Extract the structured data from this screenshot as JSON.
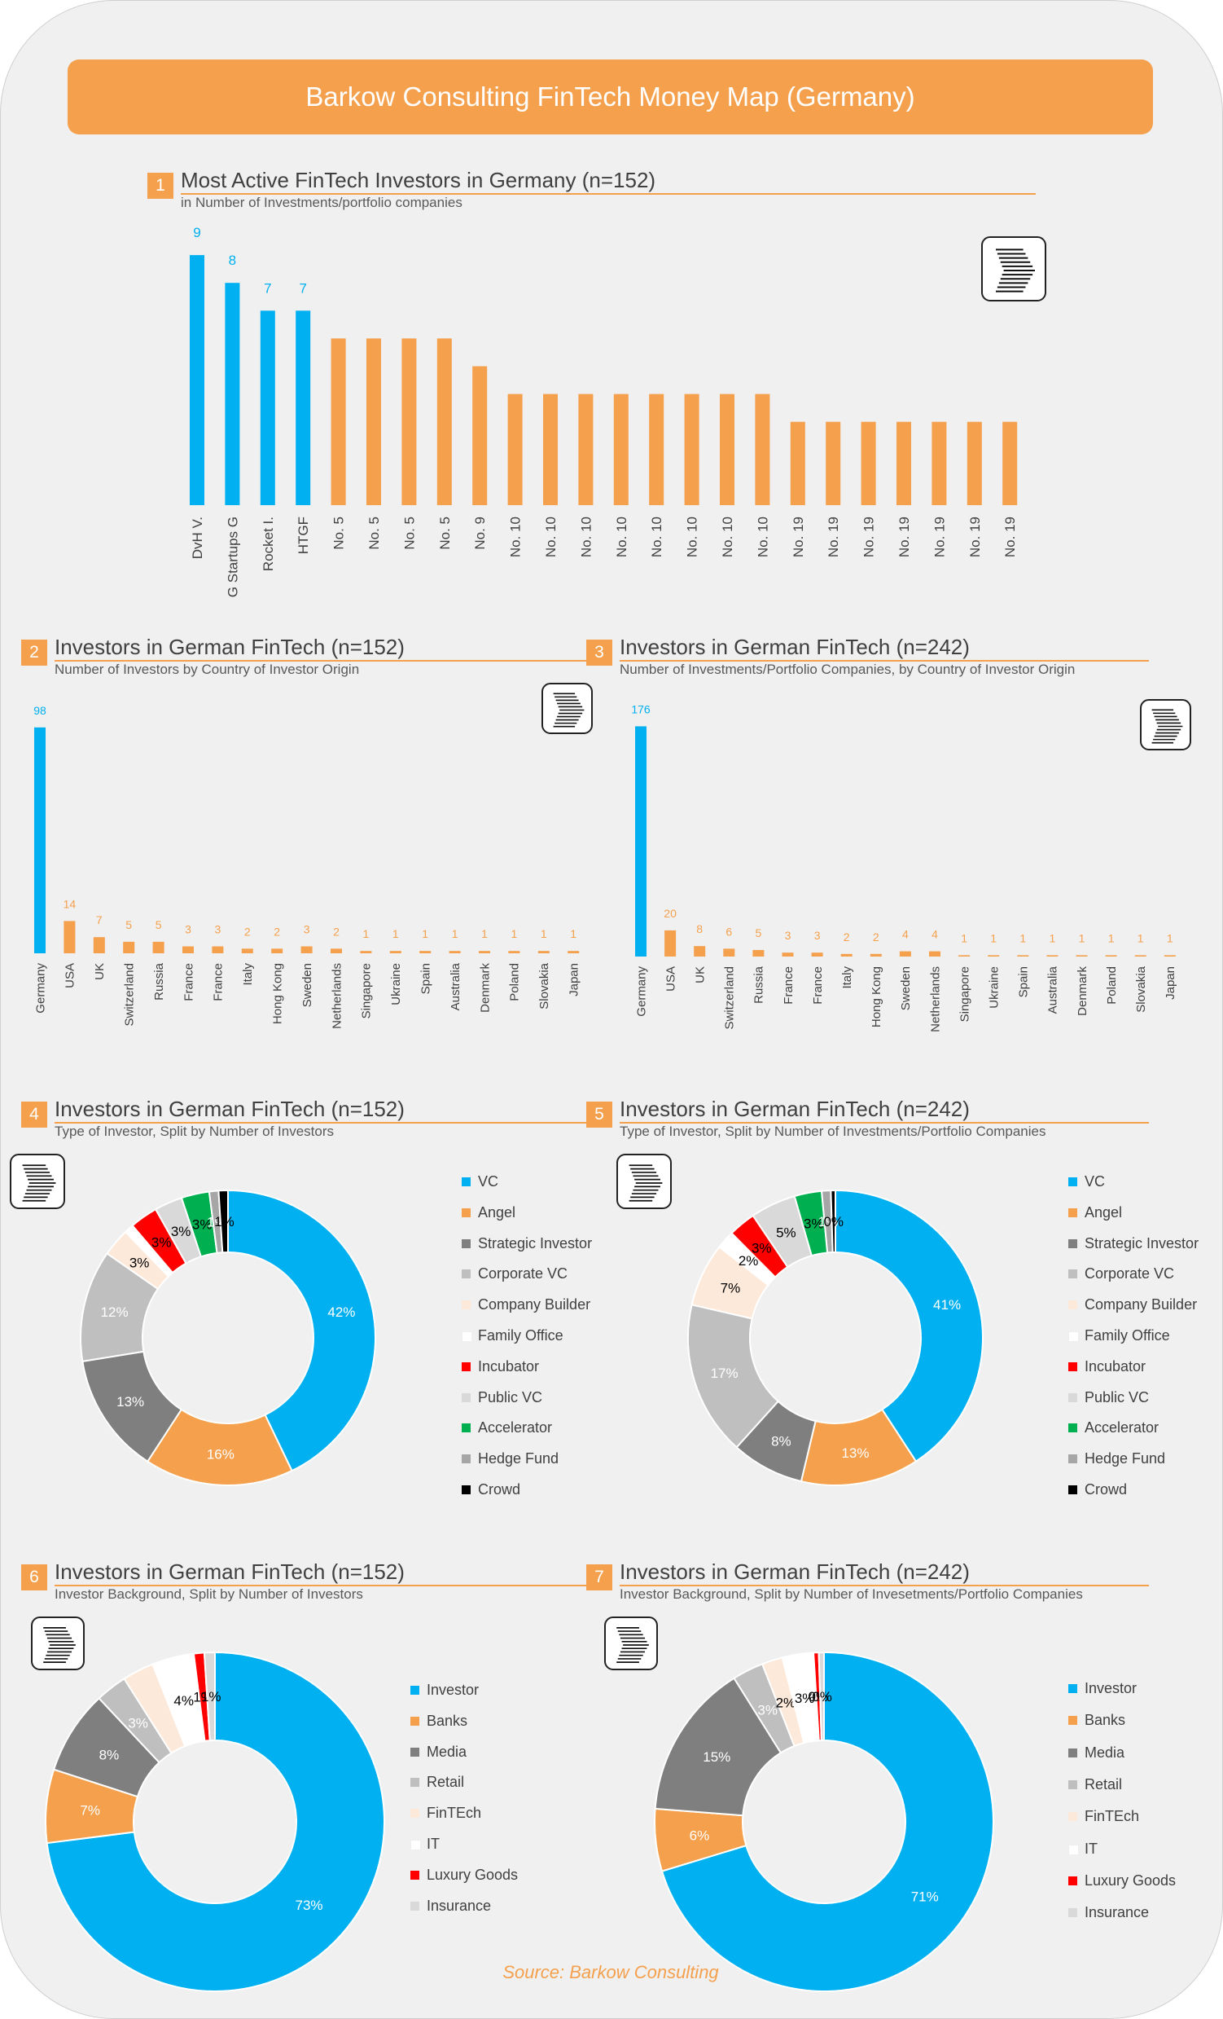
{
  "title": "Barkow Consulting FinTech Money Map (Germany)",
  "source": "Source: Barkow Consulting",
  "colors": {
    "blue": "#00b0f0",
    "orange": "#f4a04d",
    "line": "#f4a04d",
    "label_blue": "#00b0f0",
    "label_orange": "#f4a04d"
  },
  "sections": [
    {
      "num": "1",
      "title": "Most Active FinTech Investors in Germany (n=152)",
      "subtitle": "in Number of Investments/portfolio companies"
    },
    {
      "num": "2",
      "title": "Investors in German FinTech (n=152)",
      "subtitle": "Number of Investors by Country of Investor Origin"
    },
    {
      "num": "3",
      "title": "Investors in German FinTech (n=242)",
      "subtitle": "Number of Investments/Portfolio Companies, by Country of Investor Origin"
    },
    {
      "num": "4",
      "title": "Investors in German FinTech (n=152)",
      "subtitle": "Type of Investor,  Split by Number of Investors"
    },
    {
      "num": "5",
      "title": "Investors in German FinTech (n=242)",
      "subtitle": "Type of Investor,  Split by Number of Investments/Portfolio Companies"
    },
    {
      "num": "6",
      "title": "Investors in German FinTech (n=152)",
      "subtitle": "Investor Background, Split by Number of Investors"
    },
    {
      "num": "7",
      "title": "Investors in German FinTech (n=242)",
      "subtitle": "Investor Background, Split by Number of Invesetments/Portfolio Companies"
    }
  ],
  "chart_data": [
    {
      "id": "chart1",
      "type": "bar",
      "title": "Most Active FinTech Investors in Germany (n=152)",
      "categories": [
        "DvH V.",
        "G Startups G",
        "Rocket I.",
        "HTGF",
        "No. 5",
        "No. 5",
        "No. 5",
        "No. 5",
        "No. 9",
        "No. 10",
        "No. 10",
        "No. 10",
        "No. 10",
        "No. 10",
        "No. 10",
        "No. 10",
        "No. 10",
        "No. 19",
        "No. 19",
        "No. 19",
        "No. 19",
        "No. 19",
        "No. 19",
        "No. 19"
      ],
      "values": [
        9,
        8,
        7,
        7,
        6,
        6,
        6,
        6,
        5,
        4,
        4,
        4,
        4,
        4,
        4,
        4,
        4,
        3,
        3,
        3,
        3,
        3,
        3,
        3
      ],
      "data_labels": [
        "9",
        "8",
        "7",
        "7",
        "",
        "",
        "",
        "",
        "",
        "",
        "",
        "",
        "",
        "",
        "",
        "",
        "",
        "",
        "",
        "",
        "",
        "",
        "",
        ""
      ],
      "highlight_count": 4,
      "ylim": [
        0,
        10
      ]
    },
    {
      "id": "chart2",
      "type": "bar",
      "title": "Investors in German FinTech (n=152)",
      "categories": [
        "Germany",
        "USA",
        "UK",
        "Switzerland",
        "Russia",
        "France",
        "France",
        "Italy",
        "Hong Kong",
        "Sweden",
        "Netherlands",
        "Singapore",
        "Ukraine",
        "Spain",
        "Australia",
        "Denmark",
        "Poland",
        "Slovakia",
        "Japan"
      ],
      "values": [
        98,
        14,
        7,
        5,
        5,
        3,
        3,
        2,
        2,
        3,
        2,
        1,
        1,
        1,
        1,
        1,
        1,
        1,
        1
      ],
      "data_labels": [
        "98",
        "14",
        "7",
        "5",
        "5",
        "3",
        "3",
        "2",
        "2",
        "3",
        "2",
        "1",
        "1",
        "1",
        "1",
        "1",
        "1",
        "1",
        "1"
      ],
      "highlight_count": 1,
      "ylim": [
        0,
        105
      ]
    },
    {
      "id": "chart3",
      "type": "bar",
      "title": "Investors in German FinTech (n=242)",
      "categories": [
        "Germany",
        "USA",
        "UK",
        "Switzerland",
        "Russia",
        "France",
        "France",
        "Italy",
        "Hong Kong",
        "Sweden",
        "Netherlands",
        "Singapore",
        "Ukraine",
        "Spain",
        "Australia",
        "Denmark",
        "Poland",
        "Slovakia",
        "Japan"
      ],
      "values": [
        176,
        20,
        8,
        6,
        5,
        3,
        3,
        2,
        2,
        4,
        4,
        1,
        1,
        1,
        1,
        1,
        1,
        1,
        1
      ],
      "data_labels": [
        "176",
        "20",
        "8",
        "6",
        "5",
        "3",
        "3",
        "2",
        "2",
        "4",
        "4",
        "1",
        "1",
        "1",
        "1",
        "1",
        "1",
        "1",
        "1"
      ],
      "highlight_count": 1,
      "ylim": [
        0,
        185
      ]
    },
    {
      "id": "chart4",
      "type": "pie",
      "donut": true,
      "title": "Investors in German FinTech (n=152)",
      "labels": [
        "VC",
        "Angel",
        "Strategic Investor",
        "Corporate VC",
        "Company Builder",
        "Family Office",
        "Incubator",
        "Public VC",
        "Accelerator",
        "Hedge Fund",
        "Crowd"
      ],
      "values": [
        42,
        16,
        13,
        12,
        3,
        1,
        3,
        3,
        3,
        1,
        1
      ],
      "data_labels": [
        "42%",
        "16%",
        "13%",
        "12%",
        "3%",
        "",
        "3%",
        "3%",
        "3%",
        "1%",
        "1%"
      ],
      "colors": [
        "#00b0f0",
        "#f4a04d",
        "#7f7f7f",
        "#bfbfbf",
        "#fde9d9",
        "#ffffff",
        "#ff0000",
        "#d9d9d9",
        "#00b050",
        "#a6a6a6",
        "#000000"
      ]
    },
    {
      "id": "chart5",
      "type": "pie",
      "donut": true,
      "title": "Investors in German FinTech (n=242)",
      "labels": [
        "VC",
        "Angel",
        "Strategic Investor",
        "Corporate VC",
        "Company Builder",
        "Family Office",
        "Incubator",
        "Public VC",
        "Accelerator",
        "Hedge Fund",
        "Crowd"
      ],
      "values": [
        41,
        13,
        8,
        17,
        7,
        2,
        3,
        5,
        3,
        1,
        0.5
      ],
      "data_labels": [
        "41%",
        "13%",
        "8%",
        "17%",
        "7%",
        "2%",
        "3%",
        "5%",
        "3%",
        "1%",
        "0%"
      ],
      "colors": [
        "#00b0f0",
        "#f4a04d",
        "#7f7f7f",
        "#bfbfbf",
        "#fde9d9",
        "#ffffff",
        "#ff0000",
        "#d9d9d9",
        "#00b050",
        "#a6a6a6",
        "#000000"
      ]
    },
    {
      "id": "chart6",
      "type": "pie",
      "donut": true,
      "title": "Investors in German FinTech (n=152)",
      "labels": [
        "Investor",
        "Banks",
        "Media",
        "Retail",
        "FinTEch",
        "IT",
        "Luxury Goods",
        "Insurance"
      ],
      "values": [
        73,
        7,
        8,
        3,
        3,
        4,
        1,
        1
      ],
      "data_labels": [
        "73%",
        "7%",
        "8%",
        "3%",
        "",
        "4%",
        "1%",
        "1%"
      ],
      "colors": [
        "#00b0f0",
        "#f4a04d",
        "#7f7f7f",
        "#bfbfbf",
        "#fde9d9",
        "#ffffff",
        "#ff0000",
        "#d9d9d9"
      ]
    },
    {
      "id": "chart7",
      "type": "pie",
      "donut": true,
      "title": "Investors in German FinTech (n=242)",
      "labels": [
        "Investor",
        "Banks",
        "Media",
        "Retail",
        "FinTEch",
        "IT",
        "Luxury Goods",
        "Insurance"
      ],
      "values": [
        71,
        6,
        15,
        3,
        2,
        3,
        0.5,
        0.5
      ],
      "data_labels": [
        "71%",
        "6%",
        "15%",
        "3%",
        "2%",
        "3%",
        "0%",
        "0%"
      ],
      "colors": [
        "#00b0f0",
        "#f4a04d",
        "#7f7f7f",
        "#bfbfbf",
        "#fde9d9",
        "#ffffff",
        "#ff0000",
        "#d9d9d9"
      ]
    }
  ]
}
